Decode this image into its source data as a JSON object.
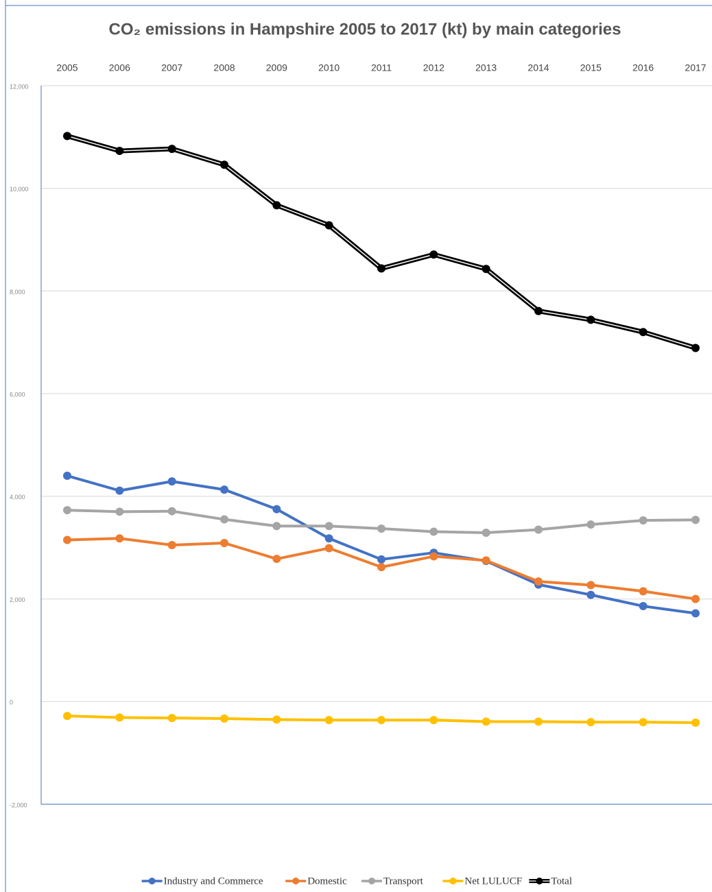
{
  "chart_data": {
    "type": "line",
    "title": "CO₂ emissions in Hampshire 2005 to 2017 (kt) by main categories",
    "categories": [
      "2005",
      "2006",
      "2007",
      "2008",
      "2009",
      "2010",
      "2011",
      "2012",
      "2013",
      "2014",
      "2015",
      "2016",
      "2017"
    ],
    "ylim": [
      -2000,
      12000
    ],
    "yticks": [
      {
        "value": -2000,
        "label": "-2,000"
      },
      0,
      {
        "value": 2000,
        "label": "2,000"
      },
      {
        "value": 4000,
        "label": "4,000"
      },
      {
        "value": 6000,
        "label": "6,000"
      },
      {
        "value": 8000,
        "label": "8,000"
      },
      {
        "value": 10000,
        "label": "10,000"
      },
      {
        "value": 12000,
        "label": "12,000"
      }
    ],
    "grid": true,
    "legend": "bottom",
    "series": [
      {
        "name": "Industry and Commerce",
        "color": "#4472c4",
        "values": [
          4400,
          4110,
          4290,
          4130,
          3750,
          3180,
          2770,
          2900,
          2740,
          2280,
          2080,
          1860,
          1720
        ]
      },
      {
        "name": "Domestic",
        "color": "#ed7d31",
        "values": [
          3150,
          3180,
          3050,
          3090,
          2780,
          2990,
          2620,
          2830,
          2750,
          2340,
          2270,
          2150,
          2000
        ]
      },
      {
        "name": "Transport",
        "color": "#a5a5a5",
        "values": [
          3730,
          3700,
          3710,
          3550,
          3420,
          3420,
          3370,
          3310,
          3290,
          3350,
          3450,
          3530,
          3540
        ]
      },
      {
        "name": "Net LULUCF",
        "color": "#ffc000",
        "values": [
          -280,
          -310,
          -320,
          -330,
          -350,
          -360,
          -360,
          -360,
          -390,
          -390,
          -400,
          -400,
          -410
        ]
      },
      {
        "name": "Total",
        "color": "#000000",
        "values": [
          11020,
          10730,
          10770,
          10460,
          9670,
          9280,
          8440,
          8710,
          8430,
          7610,
          7440,
          7200,
          6890
        ]
      }
    ]
  }
}
